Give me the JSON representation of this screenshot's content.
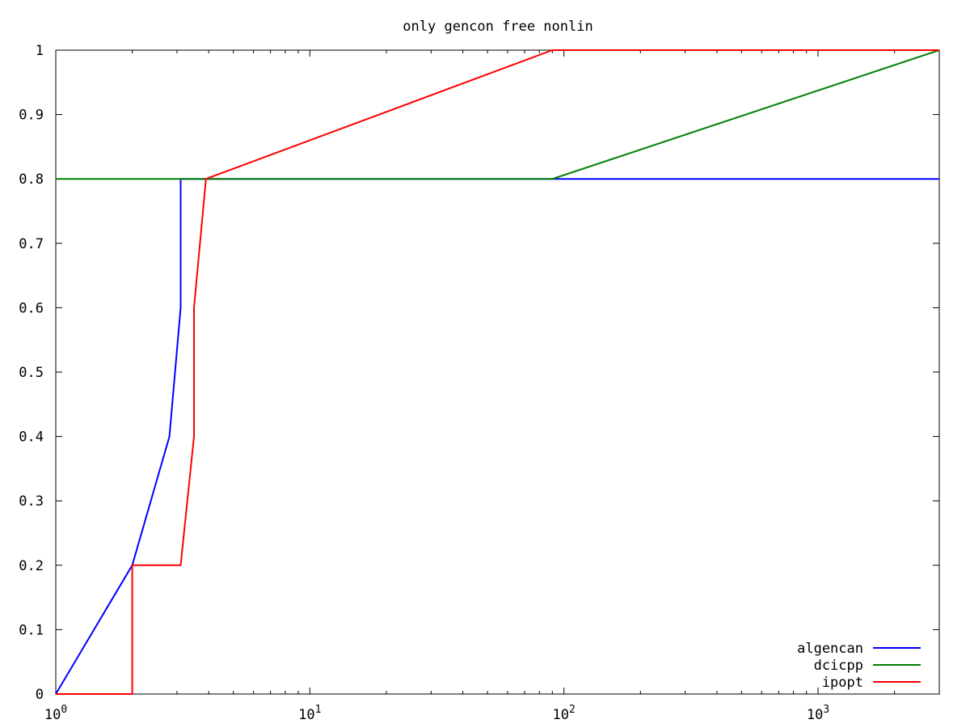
{
  "chart_data": {
    "type": "line",
    "title": "only gencon free nonlin",
    "xlabel": "",
    "ylabel": "",
    "x_scale": "log",
    "xlim": [
      1,
      3000
    ],
    "ylim": [
      0,
      1
    ],
    "grid": false,
    "legend_position": "bottom-right",
    "x_ticks": [
      {
        "value": 1,
        "base": "10",
        "exp": "0"
      },
      {
        "value": 10,
        "base": "10",
        "exp": "1"
      },
      {
        "value": 100,
        "base": "10",
        "exp": "2"
      },
      {
        "value": 1000,
        "base": "10",
        "exp": "3"
      }
    ],
    "y_ticks": [
      {
        "value": 0,
        "label": "0"
      },
      {
        "value": 0.1,
        "label": "0.1"
      },
      {
        "value": 0.2,
        "label": "0.2"
      },
      {
        "value": 0.3,
        "label": "0.3"
      },
      {
        "value": 0.4,
        "label": "0.4"
      },
      {
        "value": 0.5,
        "label": "0.5"
      },
      {
        "value": 0.6,
        "label": "0.6"
      },
      {
        "value": 0.7,
        "label": "0.7"
      },
      {
        "value": 0.8,
        "label": "0.8"
      },
      {
        "value": 0.9,
        "label": "0.9"
      },
      {
        "value": 1,
        "label": "1"
      }
    ],
    "series": [
      {
        "name": "algencan",
        "color": "#0000ff",
        "points": [
          [
            1,
            0
          ],
          [
            2,
            0.2
          ],
          [
            2.8,
            0.4
          ],
          [
            3.1,
            0.6
          ],
          [
            3.1,
            0.8
          ],
          [
            3000,
            0.8
          ]
        ]
      },
      {
        "name": "dcicpp",
        "color": "#008000",
        "points": [
          [
            1,
            0.8
          ],
          [
            90,
            0.8
          ],
          [
            3000,
            1.0
          ]
        ]
      },
      {
        "name": "ipopt",
        "color": "#ff0000",
        "points": [
          [
            1,
            0
          ],
          [
            2,
            0
          ],
          [
            2,
            0.2
          ],
          [
            3.1,
            0.2
          ],
          [
            3.5,
            0.4
          ],
          [
            3.5,
            0.6
          ],
          [
            3.9,
            0.8
          ],
          [
            90,
            1.0
          ],
          [
            3000,
            1.0
          ]
        ]
      }
    ]
  }
}
